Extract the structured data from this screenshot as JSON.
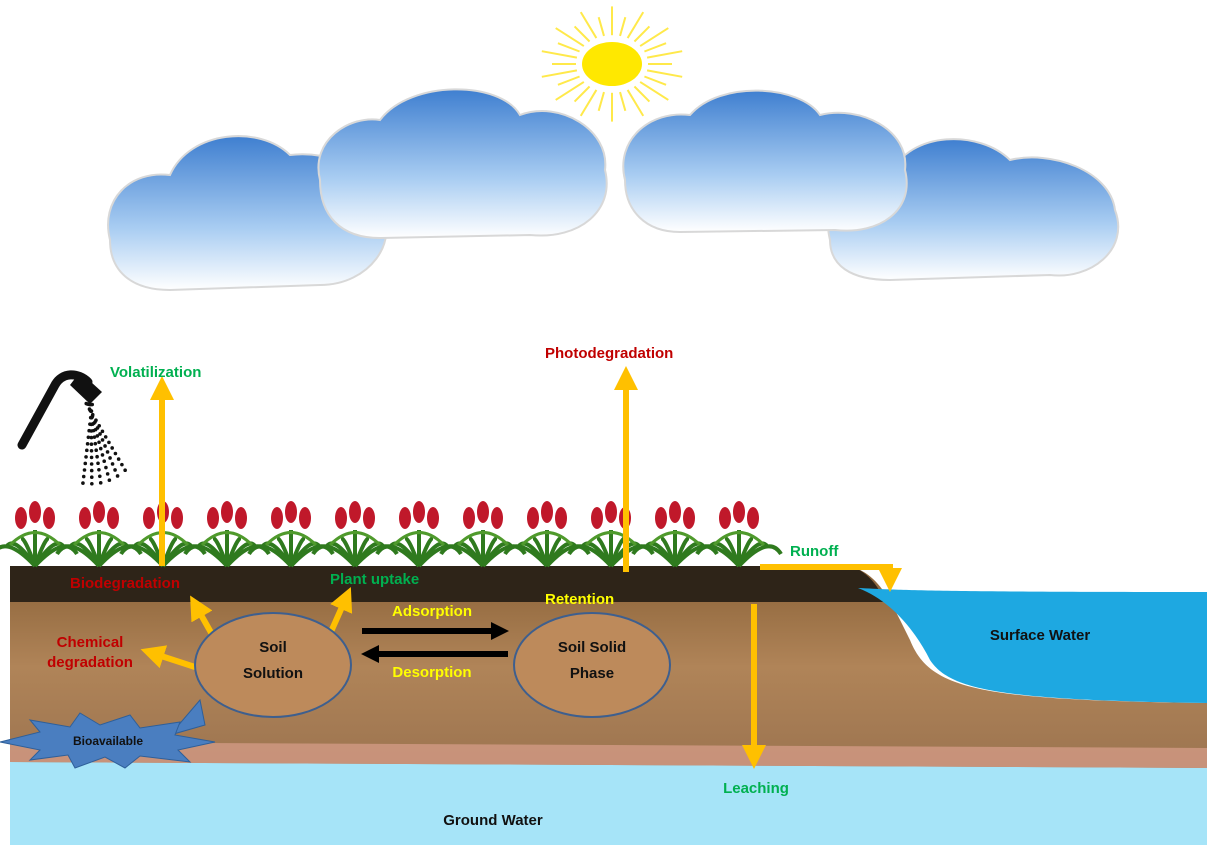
{
  "labels": {
    "volatilization": "Volatilization",
    "photodegradation": "Photodegradation",
    "runoff": "Runoff",
    "biodegradation": "Biodegradation",
    "plant_uptake": "Plant uptake",
    "chemical_degradation": [
      "Chemical",
      "degradation"
    ],
    "retention": "Retention",
    "surface_water": "Surface Water",
    "soil_solution": [
      "Soil",
      "Solution"
    ],
    "soil_solid_phase": [
      "Soil Solid",
      "Phase"
    ],
    "adsorption": "Adsorption",
    "desorption": "Desorption",
    "bioavailable": "Bioavailable",
    "leaching": "Leaching",
    "ground_water": "Ground Water"
  }
}
